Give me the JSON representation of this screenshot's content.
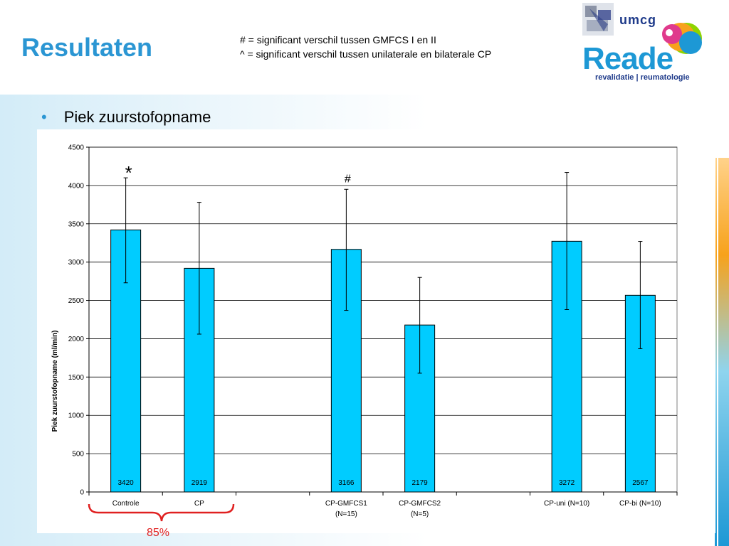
{
  "slide": {
    "title": "Resultaten",
    "notes": [
      "# = significant verschil tussen GMFCS I en II",
      "^ = significant verschil tussen unilaterale en bilaterale CP"
    ],
    "bullet": "Piek zuurstofopname",
    "logo": {
      "umcg": "umcg",
      "reade": "Reade",
      "reade_sub": "revalidatie | reumatologie"
    },
    "brace_label": "85%",
    "colors": {
      "title": "#2b96d3",
      "bar": "#00ccff",
      "brace": "#e02020"
    }
  },
  "chart_data": {
    "type": "bar",
    "categories": [
      "Controle",
      "CP",
      "",
      "CP-GMFCS1 (N=15)",
      "CP-GMFCS2 (N=5)",
      "",
      "CP-uni (N=10)",
      "CP-bi (N=10)"
    ],
    "category_lines": [
      [
        "Controle"
      ],
      [
        "CP"
      ],
      [],
      [
        "CP-GMFCS1",
        "(N=15)"
      ],
      [
        "CP-GMFCS2",
        "(N=5)"
      ],
      [],
      [
        "CP-uni (N=10)"
      ],
      [
        "CP-bi (N=10)"
      ]
    ],
    "values": [
      3420,
      2919,
      null,
      3166,
      2179,
      null,
      3272,
      2567
    ],
    "value_labels": [
      "3420",
      "2919",
      "",
      "3166",
      "2179",
      "",
      "3272",
      "2567"
    ],
    "error_low": [
      2730,
      2060,
      null,
      2370,
      1550,
      null,
      2380,
      1870
    ],
    "error_high": [
      4100,
      3780,
      null,
      3950,
      2800,
      null,
      4170,
      3270
    ],
    "annotations": [
      "*",
      "",
      "",
      "#",
      "",
      "",
      "",
      ""
    ],
    "ylabel": "Piek zuurstofopname (ml/min)",
    "xlabel": "",
    "ylim": [
      0,
      4500
    ],
    "yticks": [
      "0",
      "500",
      "1000",
      "1500",
      "2000",
      "2500",
      "3000",
      "3500",
      "4000",
      "4500"
    ],
    "grid": true,
    "bar_color": "#00ccff"
  }
}
